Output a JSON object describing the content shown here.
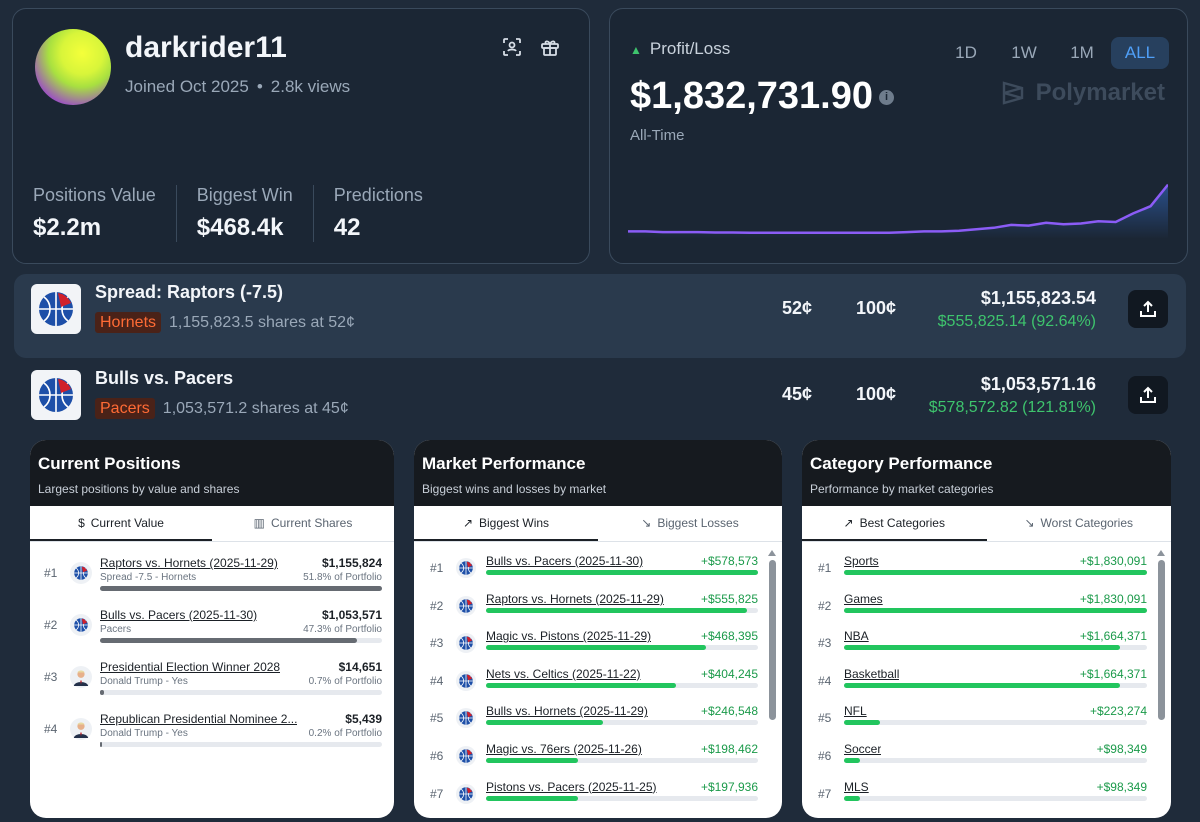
{
  "profile": {
    "username": "darkrider11",
    "joined": "Joined Oct 2025",
    "views": "2.8k views",
    "stats": [
      {
        "label": "Positions Value",
        "value": "$2.2m"
      },
      {
        "label": "Biggest Win",
        "value": "$468.4k"
      },
      {
        "label": "Predictions",
        "value": "42"
      }
    ],
    "icons": [
      "scan-icon",
      "gift-icon"
    ]
  },
  "pnl": {
    "label": "Profit/Loss",
    "value": "$1,832,731.90",
    "period": "All-Time",
    "ranges": [
      "1D",
      "1W",
      "1M",
      "ALL"
    ],
    "active_range": "ALL",
    "brand": "Polymarket",
    "line_color": "#8b5cf6",
    "series": [
      0.05,
      0.05,
      0.04,
      0.04,
      0.04,
      0.035,
      0.035,
      0.03,
      0.03,
      0.03,
      0.03,
      0.03,
      0.03,
      0.03,
      0.03,
      0.03,
      0.04,
      0.05,
      0.05,
      0.06,
      0.08,
      0.1,
      0.14,
      0.13,
      0.17,
      0.15,
      0.16,
      0.19,
      0.18,
      0.3,
      0.4,
      0.7
    ]
  },
  "positions": [
    {
      "title": "Spread: Raptors (-7.5)",
      "outcome": "Hornets",
      "shares": "1,155,823.5 shares at 52¢",
      "avg": "52¢",
      "current": "100¢",
      "value": "$1,155,823.54",
      "gain": "$555,825.14 (92.64%)"
    },
    {
      "title": "Bulls vs. Pacers",
      "outcome": "Pacers",
      "shares": "1,053,571.2 shares at 45¢",
      "avg": "45¢",
      "current": "100¢",
      "value": "$1,053,571.16",
      "gain": "$578,572.82 (121.81%)"
    }
  ],
  "current_positions": {
    "title": "Current Positions",
    "subtitle": "Largest positions by value and shares",
    "tabs": [
      "Current Value",
      "Current Shares"
    ],
    "rows": [
      {
        "rank": "#1",
        "title": "Raptors vs. Hornets (2025-11-29)",
        "sub": "Spread -7.5 - Hornets",
        "value": "$1,155,824",
        "pct": "51.8% of Portfolio",
        "fill": 1.0,
        "icon": "nba-icon"
      },
      {
        "rank": "#2",
        "title": "Bulls vs. Pacers (2025-11-30)",
        "sub": "Pacers",
        "value": "$1,053,571",
        "pct": "47.3% of Portfolio",
        "fill": 0.91,
        "icon": "nba-icon"
      },
      {
        "rank": "#3",
        "title": "Presidential Election Winner 2028",
        "sub": "Donald Trump - Yes",
        "value": "$14,651",
        "pct": "0.7% of Portfolio",
        "fill": 0.013,
        "icon": "person-icon"
      },
      {
        "rank": "#4",
        "title": "Republican Presidential Nominee 2...",
        "sub": "Donald Trump - Yes",
        "value": "$5,439",
        "pct": "0.2% of Portfolio",
        "fill": 0.005,
        "icon": "person-icon"
      }
    ]
  },
  "market_performance": {
    "title": "Market Performance",
    "subtitle": "Biggest wins and losses by market",
    "tabs": [
      "Biggest Wins",
      "Biggest Losses"
    ],
    "rows": [
      {
        "rank": "#1",
        "title": "Bulls vs. Pacers (2025-11-30)",
        "value": "+$578,573",
        "fill": 1.0
      },
      {
        "rank": "#2",
        "title": "Raptors vs. Hornets (2025-11-29)",
        "value": "+$555,825",
        "fill": 0.96
      },
      {
        "rank": "#3",
        "title": "Magic vs. Pistons (2025-11-29)",
        "value": "+$468,395",
        "fill": 0.81
      },
      {
        "rank": "#4",
        "title": "Nets vs. Celtics (2025-11-22)",
        "value": "+$404,245",
        "fill": 0.7
      },
      {
        "rank": "#5",
        "title": "Bulls vs. Hornets (2025-11-29)",
        "value": "+$246,548",
        "fill": 0.43
      },
      {
        "rank": "#6",
        "title": "Magic vs. 76ers (2025-11-26)",
        "value": "+$198,462",
        "fill": 0.34
      },
      {
        "rank": "#7",
        "title": "Pistons vs. Pacers (2025-11-25)",
        "value": "+$197,936",
        "fill": 0.34
      }
    ]
  },
  "category_performance": {
    "title": "Category Performance",
    "subtitle": "Performance by market categories",
    "tabs": [
      "Best Categories",
      "Worst Categories"
    ],
    "rows": [
      {
        "rank": "#1",
        "title": "Sports",
        "value": "+$1,830,091",
        "fill": 1.0
      },
      {
        "rank": "#2",
        "title": "Games",
        "value": "+$1,830,091",
        "fill": 1.0
      },
      {
        "rank": "#3",
        "title": "NBA",
        "value": "+$1,664,371",
        "fill": 0.91
      },
      {
        "rank": "#4",
        "title": "Basketball",
        "value": "+$1,664,371",
        "fill": 0.91
      },
      {
        "rank": "#5",
        "title": "NFL",
        "value": "+$223,274",
        "fill": 0.12
      },
      {
        "rank": "#6",
        "title": "Soccer",
        "value": "+$98,349",
        "fill": 0.054
      },
      {
        "rank": "#7",
        "title": "MLS",
        "value": "+$98,349",
        "fill": 0.054
      }
    ]
  }
}
